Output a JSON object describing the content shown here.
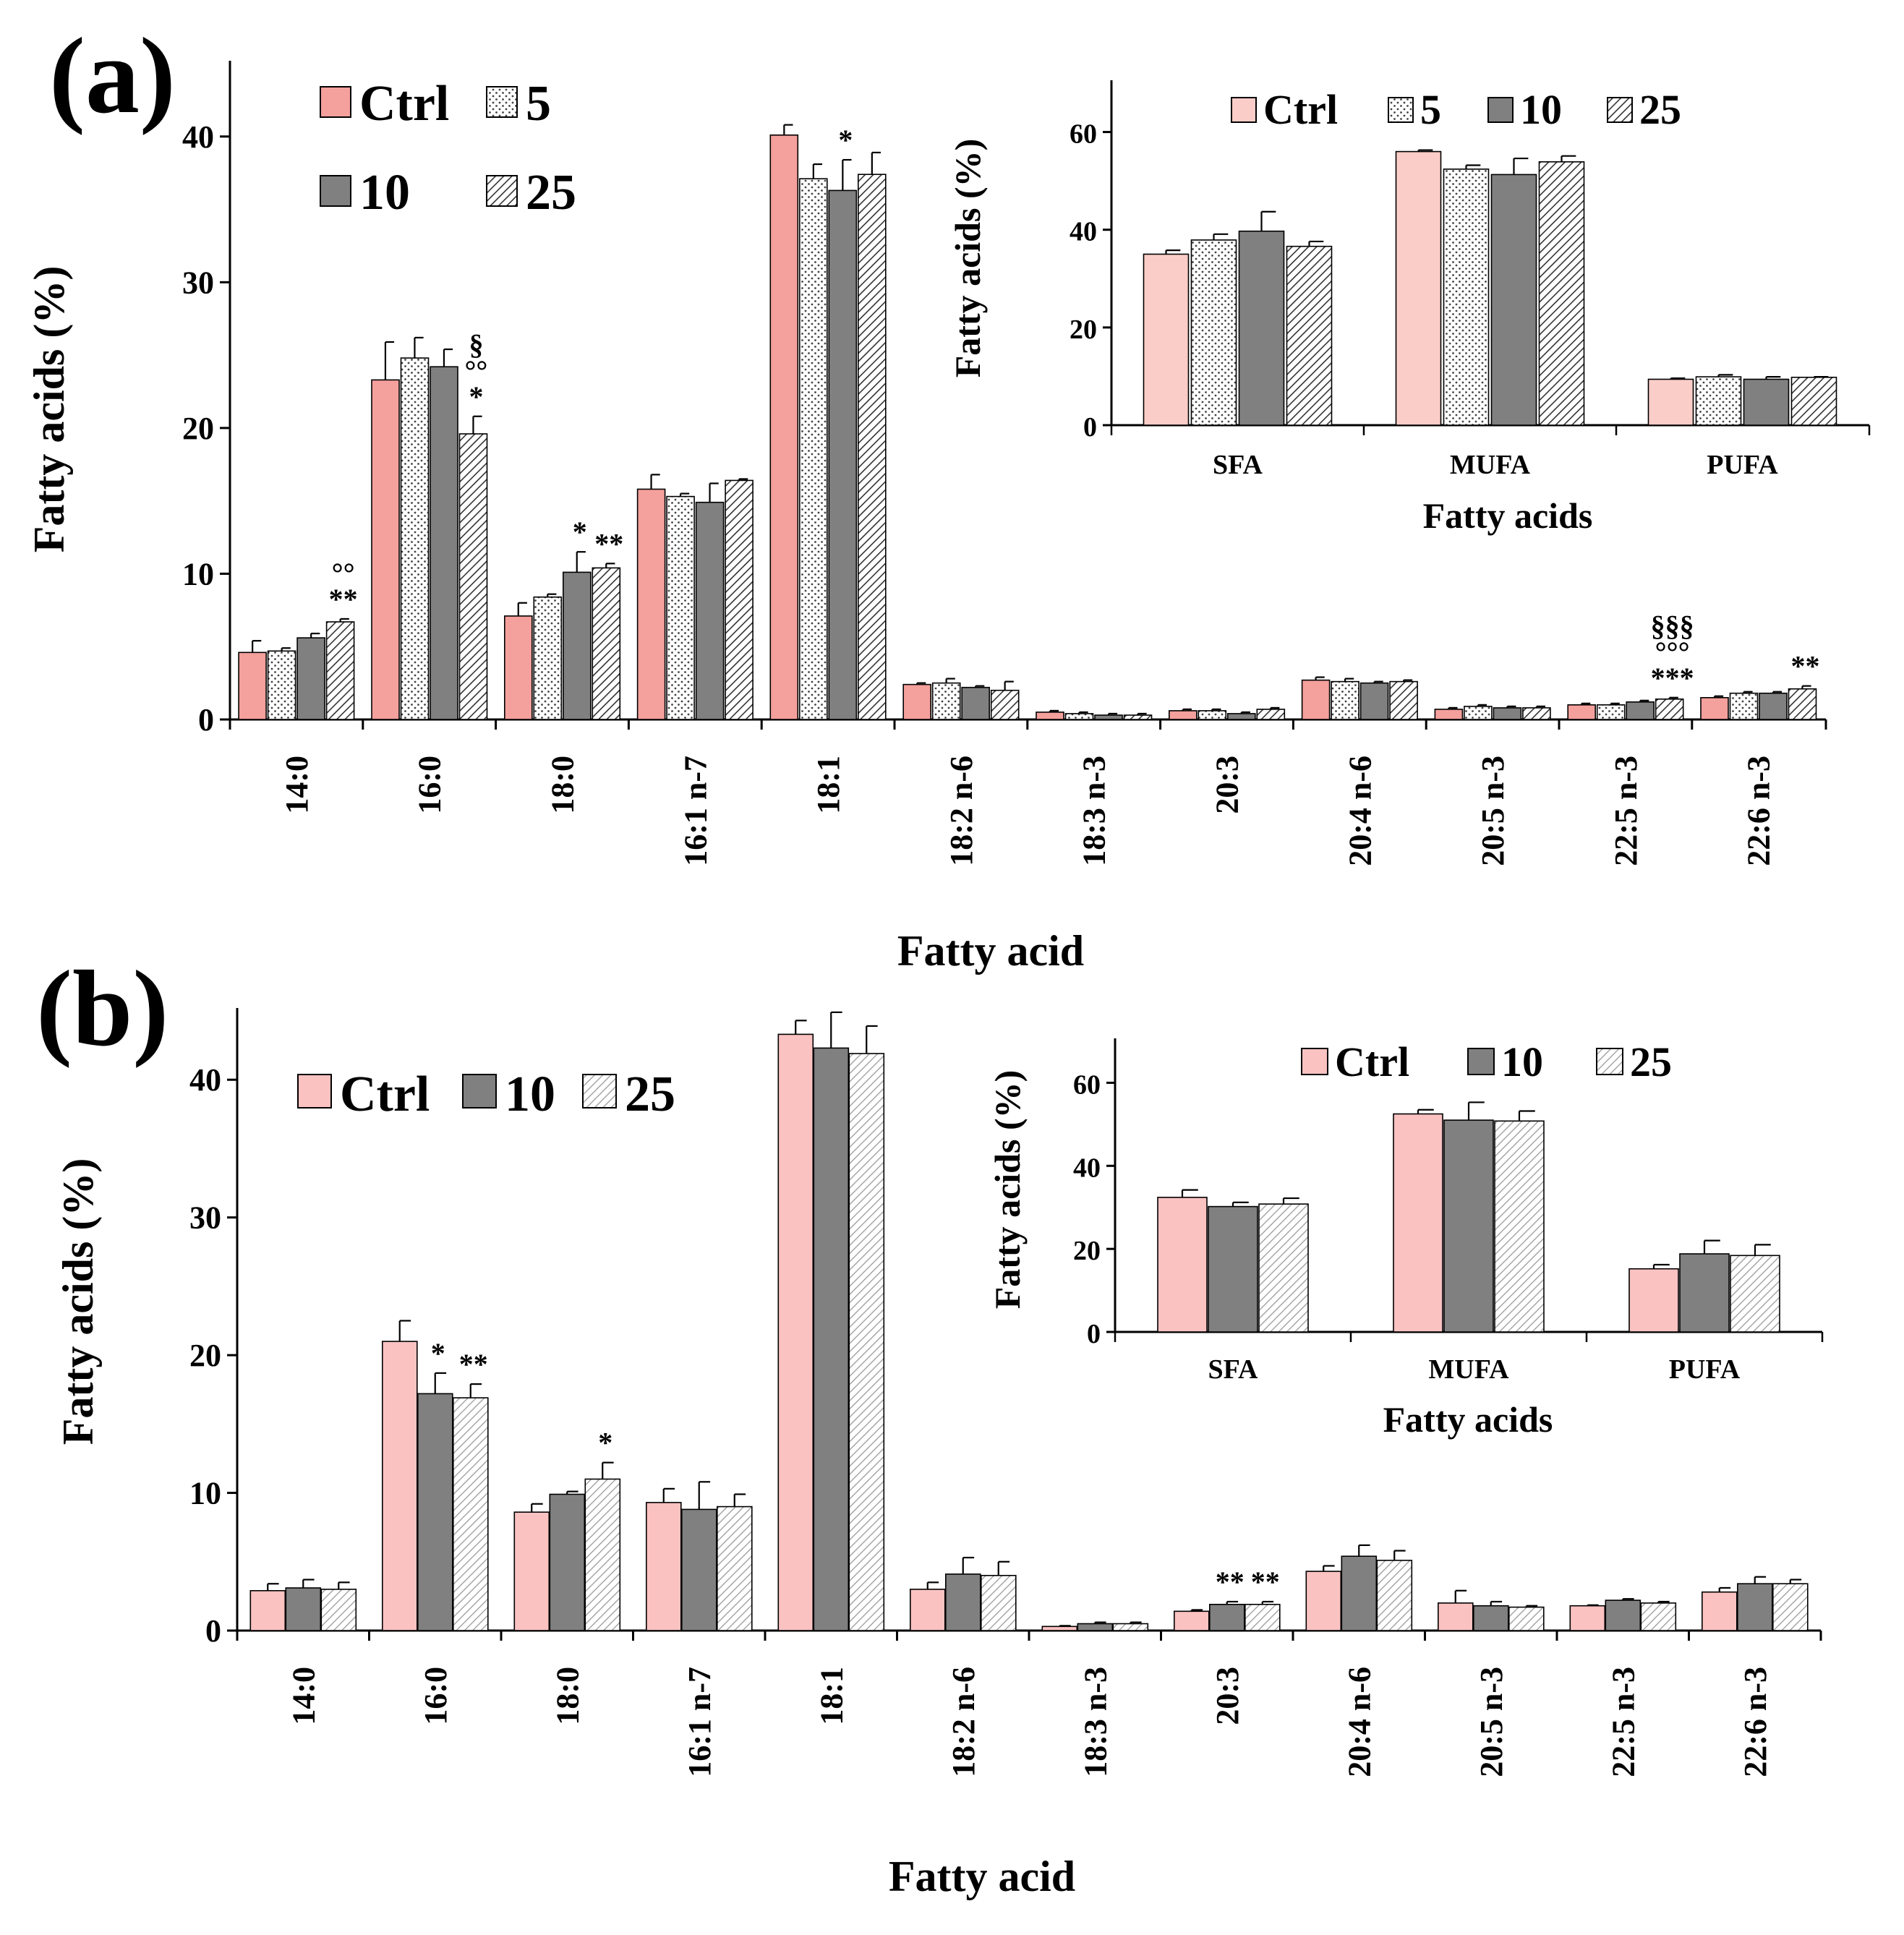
{
  "chart_data": [
    {
      "panel": "(a)",
      "type": "bar",
      "ylabel": "Fatty acids (%)",
      "xlabel": "Fatty acid",
      "ylim": [
        0,
        45
      ],
      "yticks": [
        "0",
        "10",
        "20",
        "30",
        "40"
      ],
      "categories": [
        "14:0",
        "16:0",
        "18:0",
        "16:1 n-7",
        "18:1",
        "18:2 n-6",
        "18:3 n-3",
        "20:3",
        "20:4 n-6",
        "20:5 n-3",
        "22:5 n-3",
        "22:6 n-3"
      ],
      "series": [
        {
          "name": "Ctrl",
          "color": "#f4a09c",
          "pattern": "solid",
          "values": [
            4.6,
            23.3,
            7.1,
            15.8,
            40.1,
            2.4,
            0.5,
            0.6,
            2.7,
            0.7,
            1.0,
            1.5
          ],
          "errors": [
            0.8,
            2.6,
            0.9,
            1.0,
            0.7,
            0.1,
            0.1,
            0.1,
            0.2,
            0.1,
            0.1,
            0.1
          ]
        },
        {
          "name": "5",
          "color": "#ffffff",
          "pattern": "dots",
          "values": [
            4.7,
            24.8,
            8.4,
            15.3,
            37.1,
            2.5,
            0.4,
            0.6,
            2.6,
            0.9,
            1.0,
            1.8
          ],
          "errors": [
            0.2,
            1.4,
            0.2,
            0.2,
            1.0,
            0.3,
            0.1,
            0.1,
            0.2,
            0.1,
            0.1,
            0.1
          ]
        },
        {
          "name": "10",
          "color": "#808080",
          "pattern": "solid",
          "values": [
            5.6,
            24.2,
            10.1,
            14.9,
            36.3,
            2.2,
            0.3,
            0.4,
            2.5,
            0.8,
            1.2,
            1.8
          ],
          "errors": [
            0.3,
            1.2,
            1.4,
            1.3,
            2.1,
            0.1,
            0.1,
            0.1,
            0.1,
            0.1,
            0.1,
            0.1
          ]
        },
        {
          "name": "25",
          "color": "#ffffff",
          "pattern": "hatch",
          "values": [
            6.7,
            19.6,
            10.4,
            16.4,
            37.4,
            2.0,
            0.3,
            0.7,
            2.6,
            0.8,
            1.4,
            2.1
          ],
          "errors": [
            0.2,
            1.2,
            0.3,
            0.1,
            1.5,
            0.6,
            0.1,
            0.1,
            0.1,
            0.1,
            0.1,
            0.2
          ]
        }
      ],
      "legend": {
        "placement": "top-left",
        "rows": [
          [
            "Ctrl",
            "5"
          ],
          [
            "10",
            "25"
          ]
        ]
      },
      "annotations": [
        {
          "category": 0,
          "series": 3,
          "lines": [
            "°°",
            "**"
          ]
        },
        {
          "category": 1,
          "series": 3,
          "lines": [
            "§",
            "°°",
            "*"
          ]
        },
        {
          "category": 2,
          "series": 2,
          "lines": [
            "*"
          ]
        },
        {
          "category": 2,
          "series": 3,
          "lines": [
            "**"
          ]
        },
        {
          "category": 4,
          "series": 2,
          "lines": [
            "*"
          ]
        },
        {
          "category": 10,
          "series": 3,
          "lines": [
            "§§§",
            "°°°",
            "***"
          ]
        },
        {
          "category": 11,
          "series": 3,
          "lines": [
            "**"
          ]
        }
      ],
      "inset": {
        "type": "bar",
        "ylabel": "Fatty acids (%)",
        "xlabel": "Fatty acids",
        "ylim": [
          0,
          70
        ],
        "yticks": [
          "0",
          "20",
          "40",
          "60"
        ],
        "categories": [
          "SFA",
          "MUFA",
          "PUFA"
        ],
        "series": [
          {
            "name": "Ctrl",
            "color": "#fbcdc8",
            "pattern": "solid",
            "values": [
              35.0,
              56.0,
              9.4
            ],
            "errors": [
              0.8,
              0.3,
              0.2
            ]
          },
          {
            "name": "5",
            "color": "#ffffff",
            "pattern": "dots",
            "values": [
              37.9,
              52.4,
              9.9
            ],
            "errors": [
              1.2,
              0.8,
              0.4
            ]
          },
          {
            "name": "10",
            "color": "#808080",
            "pattern": "solid",
            "values": [
              39.7,
              51.3,
              9.4
            ],
            "errors": [
              4.0,
              3.3,
              0.5
            ]
          },
          {
            "name": "25",
            "color": "#ffffff",
            "pattern": "hatch",
            "values": [
              36.6,
              53.9,
              9.8
            ],
            "errors": [
              1.0,
              1.2,
              0.1
            ]
          }
        ],
        "legend": {
          "placement": "top",
          "rows": [
            [
              "Ctrl",
              "5",
              "10",
              "25"
            ]
          ]
        }
      }
    },
    {
      "panel": "(b)",
      "type": "bar",
      "ylabel": "Fatty acids (%)",
      "xlabel": "Fatty acid",
      "ylim": [
        0,
        45
      ],
      "yticks": [
        "0",
        "10",
        "20",
        "30",
        "40"
      ],
      "categories": [
        "14:0",
        "16:0",
        "18:0",
        "16:1 n-7",
        "18:1",
        "18:2 n-6",
        "18:3 n-3",
        "20:3",
        "20:4 n-6",
        "20:5 n-3",
        "22:5 n-3",
        "22:6 n-3"
      ],
      "series": [
        {
          "name": "Ctrl",
          "color": "#fbc2c2",
          "pattern": "solid",
          "values": [
            2.9,
            21.0,
            8.6,
            9.3,
            43.3,
            3.0,
            0.3,
            1.4,
            4.3,
            2.0,
            1.8,
            2.8
          ],
          "errors": [
            0.5,
            1.5,
            0.6,
            1.0,
            1.0,
            0.5,
            0.05,
            0.1,
            0.4,
            0.9,
            0.05,
            0.3
          ]
        },
        {
          "name": "10",
          "color": "#808080",
          "pattern": "solid",
          "values": [
            3.1,
            17.2,
            9.9,
            8.8,
            42.3,
            4.1,
            0.5,
            1.9,
            5.4,
            1.8,
            2.2,
            3.4
          ],
          "errors": [
            0.6,
            1.5,
            0.2,
            2.0,
            2.6,
            1.2,
            0.1,
            0.2,
            0.8,
            0.3,
            0.1,
            0.5
          ]
        },
        {
          "name": "25",
          "color": "#ffffff",
          "pattern": "hatch",
          "values": [
            3.0,
            16.9,
            11.0,
            9.0,
            41.9,
            4.0,
            0.5,
            1.9,
            5.1,
            1.7,
            2.0,
            3.4
          ],
          "errors": [
            0.5,
            1.0,
            1.2,
            0.9,
            2.0,
            1.0,
            0.1,
            0.2,
            0.7,
            0.1,
            0.1,
            0.3
          ]
        }
      ],
      "legend": {
        "placement": "top-left",
        "rows": [
          [
            "Ctrl",
            "10",
            "25"
          ]
        ]
      },
      "annotations": [
        {
          "category": 1,
          "series": 1,
          "lines": [
            "*"
          ]
        },
        {
          "category": 1,
          "series": 2,
          "lines": [
            "**"
          ]
        },
        {
          "category": 2,
          "series": 2,
          "lines": [
            "*"
          ]
        },
        {
          "category": 7,
          "series": 1,
          "lines": [
            "**"
          ]
        },
        {
          "category": 7,
          "series": 2,
          "lines": [
            "**"
          ]
        }
      ],
      "inset": {
        "type": "bar",
        "ylabel": "Fatty acids (%)",
        "xlabel": "Fatty acids",
        "ylim": [
          0,
          70
        ],
        "yticks": [
          "0",
          "20",
          "40",
          "60"
        ],
        "categories": [
          "SFA",
          "MUFA",
          "PUFA"
        ],
        "series": [
          {
            "name": "Ctrl",
            "color": "#fbc2c2",
            "pattern": "solid",
            "values": [
              32.4,
              52.5,
              15.2
            ],
            "errors": [
              1.8,
              1.0,
              1.0
            ]
          },
          {
            "name": "10",
            "color": "#808080",
            "pattern": "solid",
            "values": [
              30.2,
              51.0,
              18.8
            ],
            "errors": [
              1.0,
              4.3,
              3.2
            ]
          },
          {
            "name": "25",
            "color": "#ffffff",
            "pattern": "hatch",
            "values": [
              30.8,
              50.8,
              18.4
            ],
            "errors": [
              1.4,
              2.4,
              2.6
            ]
          }
        ],
        "legend": {
          "placement": "top",
          "rows": [
            [
              "Ctrl",
              "10",
              "25"
            ]
          ]
        }
      }
    }
  ]
}
